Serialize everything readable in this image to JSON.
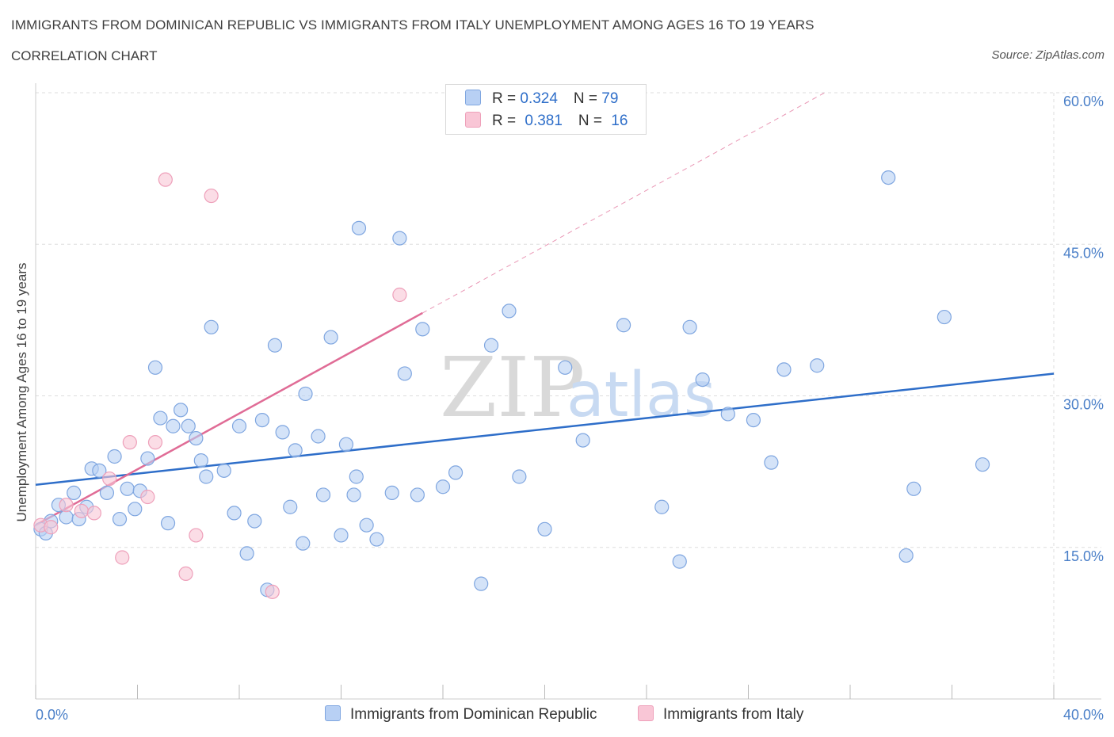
{
  "title": "IMMIGRANTS FROM DOMINICAN REPUBLIC VS IMMIGRANTS FROM ITALY UNEMPLOYMENT AMONG AGES 16 TO 19 YEARS",
  "subtitle": "CORRELATION CHART",
  "source": "Source: ZipAtlas.com",
  "watermark": {
    "zip": "ZIP",
    "atlas": "atlas"
  },
  "colors": {
    "blue_fill": "#b8d0f4",
    "blue_stroke": "#7fa6e0",
    "blue_line": "#2e6ec9",
    "pink_fill": "#f9c6d6",
    "pink_stroke": "#eea0ba",
    "pink_line": "#e06c96",
    "grid": "#dddddd",
    "tick_text": "#4a7fc8"
  },
  "legend": {
    "series1": {
      "r_label": "R = ",
      "r_value": "0.324",
      "n_label": "N = ",
      "n_value": "79"
    },
    "series2": {
      "r_label": "R = ",
      "r_value": "0.381",
      "n_label": "N = ",
      "n_value": "16"
    }
  },
  "bottom_legend": {
    "series1": "Immigrants from Dominican Republic",
    "series2": "Immigrants from Italy"
  },
  "chart_data": {
    "type": "scatter",
    "title": "IMMIGRANTS FROM DOMINICAN REPUBLIC VS IMMIGRANTS FROM ITALY UNEMPLOYMENT AMONG AGES 16 TO 19 YEARS",
    "xlabel": "",
    "ylabel": "Unemployment Among Ages 16 to 19 years",
    "xlim": [
      0,
      40
    ],
    "ylim": [
      0,
      60
    ],
    "x_tick_labels": [
      "0.0%",
      "40.0%"
    ],
    "y_ticks": [
      15,
      30,
      45,
      60
    ],
    "y_tick_labels": [
      "15.0%",
      "30.0%",
      "45.0%",
      "60.0%"
    ],
    "grid": true,
    "legend_position": "top-center",
    "series": [
      {
        "name": "Immigrants from Dominican Republic",
        "R": 0.324,
        "N": 79,
        "trend": {
          "x0": 0,
          "y0": 21.2,
          "x1": 40,
          "y1": 32.2
        },
        "points": [
          [
            0.2,
            16.8
          ],
          [
            0.4,
            16.4
          ],
          [
            0.6,
            17.6
          ],
          [
            0.9,
            19.2
          ],
          [
            1.2,
            18.0
          ],
          [
            1.5,
            20.4
          ],
          [
            1.7,
            17.8
          ],
          [
            2.0,
            19.0
          ],
          [
            2.2,
            22.8
          ],
          [
            2.5,
            22.6
          ],
          [
            2.8,
            20.4
          ],
          [
            3.1,
            24.0
          ],
          [
            3.3,
            17.8
          ],
          [
            3.6,
            20.8
          ],
          [
            3.9,
            18.8
          ],
          [
            4.1,
            20.6
          ],
          [
            4.4,
            23.8
          ],
          [
            4.7,
            32.8
          ],
          [
            4.9,
            27.8
          ],
          [
            5.2,
            17.4
          ],
          [
            5.4,
            27.0
          ],
          [
            5.7,
            28.6
          ],
          [
            6.0,
            27.0
          ],
          [
            6.3,
            25.8
          ],
          [
            6.5,
            23.6
          ],
          [
            6.7,
            22.0
          ],
          [
            6.9,
            36.8
          ],
          [
            7.4,
            22.6
          ],
          [
            7.8,
            18.4
          ],
          [
            8.0,
            27.0
          ],
          [
            8.3,
            14.4
          ],
          [
            8.6,
            17.6
          ],
          [
            8.9,
            27.6
          ],
          [
            9.1,
            10.8
          ],
          [
            9.4,
            35.0
          ],
          [
            9.7,
            26.4
          ],
          [
            10.0,
            19.0
          ],
          [
            10.2,
            24.6
          ],
          [
            10.5,
            15.4
          ],
          [
            10.6,
            30.2
          ],
          [
            11.1,
            26.0
          ],
          [
            11.3,
            20.2
          ],
          [
            11.6,
            35.8
          ],
          [
            12.0,
            16.2
          ],
          [
            12.2,
            25.2
          ],
          [
            12.5,
            20.2
          ],
          [
            12.6,
            22.0
          ],
          [
            13.0,
            17.2
          ],
          [
            12.7,
            46.6
          ],
          [
            13.4,
            15.8
          ],
          [
            14.0,
            20.4
          ],
          [
            14.3,
            45.6
          ],
          [
            14.5,
            32.2
          ],
          [
            15.0,
            20.2
          ],
          [
            15.2,
            36.6
          ],
          [
            16.0,
            21.0
          ],
          [
            16.5,
            22.4
          ],
          [
            17.5,
            11.4
          ],
          [
            17.9,
            35.0
          ],
          [
            18.6,
            38.4
          ],
          [
            19.0,
            22.0
          ],
          [
            20.0,
            16.8
          ],
          [
            20.8,
            32.8
          ],
          [
            21.5,
            25.6
          ],
          [
            23.1,
            37.0
          ],
          [
            24.6,
            19.0
          ],
          [
            25.3,
            13.6
          ],
          [
            25.7,
            36.8
          ],
          [
            26.2,
            31.6
          ],
          [
            27.2,
            28.2
          ],
          [
            28.2,
            27.6
          ],
          [
            28.9,
            23.4
          ],
          [
            29.4,
            32.6
          ],
          [
            30.7,
            33.0
          ],
          [
            33.5,
            51.6
          ],
          [
            34.2,
            14.2
          ],
          [
            34.5,
            20.8
          ],
          [
            35.7,
            37.8
          ],
          [
            37.2,
            23.2
          ]
        ]
      },
      {
        "name": "Immigrants from Italy",
        "R": 0.381,
        "N": 16,
        "trend": {
          "x0": 0,
          "y0": 17.2,
          "x1": 15.2,
          "y1": 38.2,
          "dash_to_x": 31,
          "dash_to_y": 60
        },
        "points": [
          [
            0.2,
            17.2
          ],
          [
            0.6,
            17.0
          ],
          [
            1.2,
            19.2
          ],
          [
            1.8,
            18.6
          ],
          [
            2.3,
            18.4
          ],
          [
            2.9,
            21.8
          ],
          [
            3.4,
            14.0
          ],
          [
            3.7,
            25.4
          ],
          [
            4.4,
            20.0
          ],
          [
            4.7,
            25.4
          ],
          [
            5.1,
            51.4
          ],
          [
            5.9,
            12.4
          ],
          [
            6.3,
            16.2
          ],
          [
            6.9,
            49.8
          ],
          [
            9.3,
            10.6
          ],
          [
            14.3,
            40.0
          ]
        ]
      }
    ]
  }
}
